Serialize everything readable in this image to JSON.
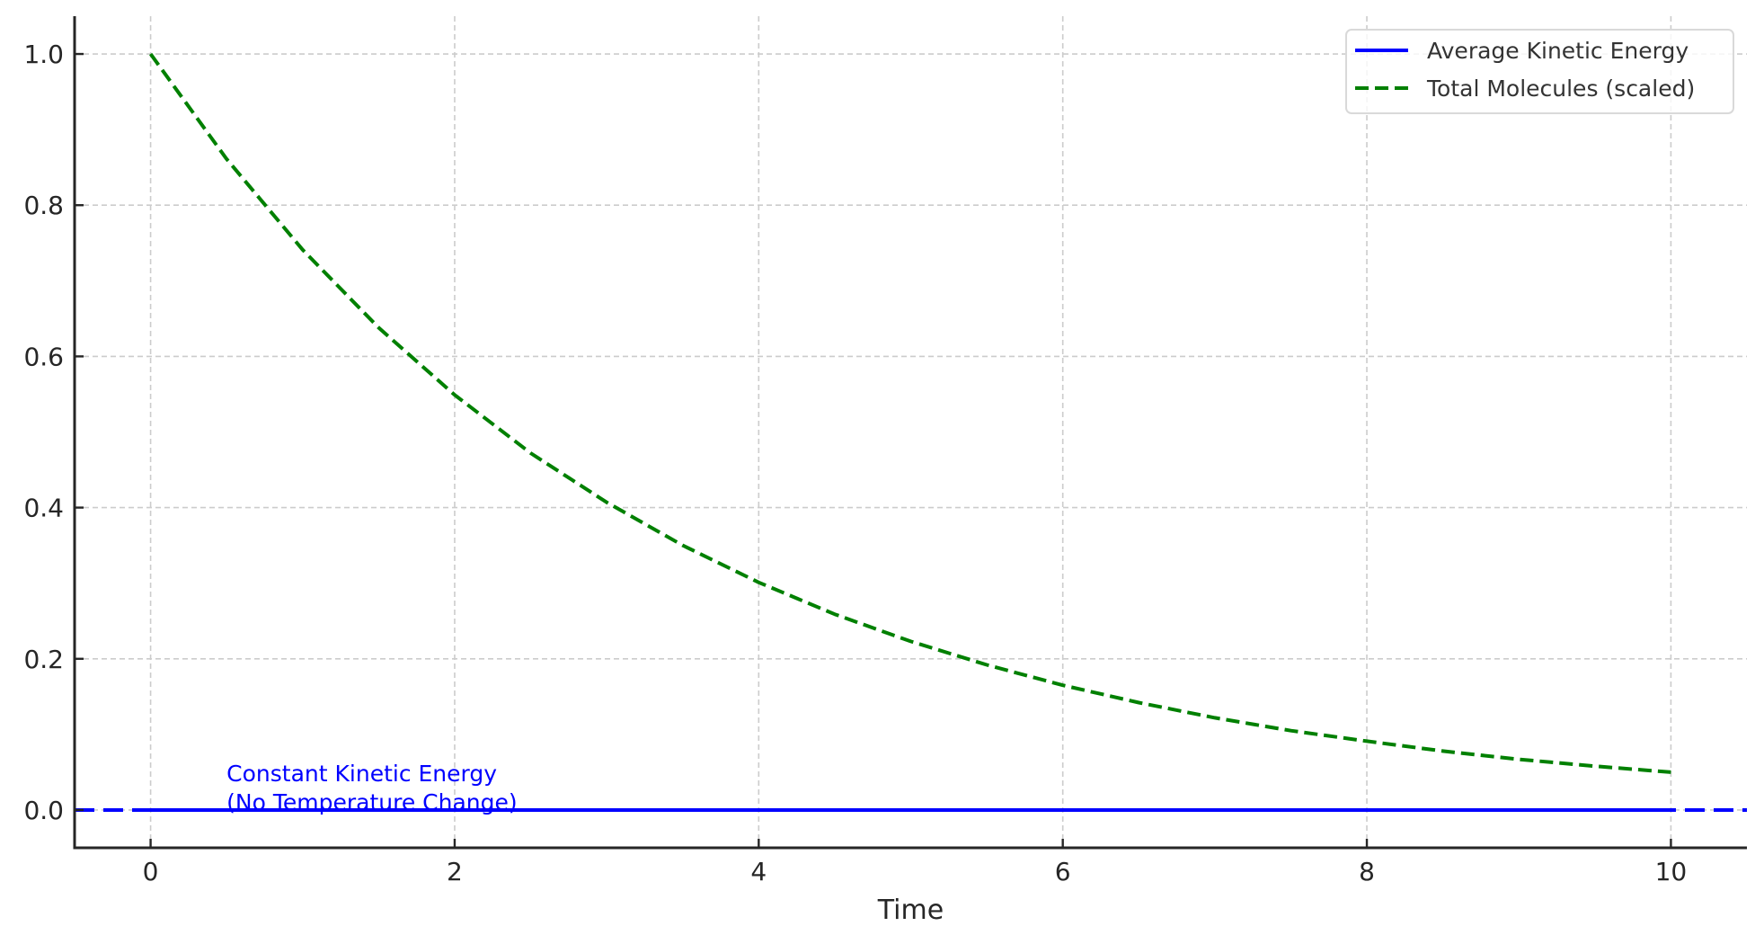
{
  "chart_data": {
    "type": "line",
    "title": "",
    "xlabel": "Time",
    "ylabel": "",
    "xlim": [
      -0.5,
      10.5
    ],
    "ylim": [
      -0.05,
      1.05
    ],
    "xticks": [
      0,
      2,
      4,
      6,
      8,
      10
    ],
    "xtick_labels": [
      "0",
      "2",
      "4",
      "6",
      "8",
      "10"
    ],
    "yticks": [
      0.0,
      0.2,
      0.4,
      0.6,
      0.8,
      1.0
    ],
    "ytick_labels": [
      "0.0",
      "0.2",
      "0.4",
      "0.6",
      "0.8",
      "1.0"
    ],
    "grid": true,
    "legend_position": "upper right",
    "x": [
      0,
      0.5,
      1,
      1.5,
      2,
      2.5,
      3,
      3.5,
      4,
      4.5,
      5,
      5.5,
      6,
      6.5,
      7,
      7.5,
      8,
      8.5,
      9,
      9.5,
      10
    ],
    "series": [
      {
        "name": "Average Kinetic Energy",
        "style": "solid",
        "color": "#0000ff",
        "values": [
          0,
          0,
          0,
          0,
          0,
          0,
          0,
          0,
          0,
          0,
          0,
          0,
          0,
          0,
          0,
          0,
          0,
          0,
          0,
          0,
          0
        ]
      },
      {
        "name": "Total Molecules (scaled)",
        "style": "dashed",
        "color": "#008000",
        "values": [
          1.0,
          0.861,
          0.741,
          0.638,
          0.549,
          0.472,
          0.407,
          0.35,
          0.301,
          0.259,
          0.223,
          0.192,
          0.165,
          0.142,
          0.122,
          0.105,
          0.091,
          0.078,
          0.067,
          0.058,
          0.05
        ]
      }
    ],
    "reference_lines": [
      {
        "type": "hline",
        "y": 0,
        "style": "dashed",
        "color": "#0000ff"
      }
    ],
    "annotations": [
      {
        "text_lines": [
          "Constant Kinetic Energy",
          "(No Temperature Change)"
        ],
        "x": 0.5,
        "y": 0.0,
        "color": "#0000ff"
      }
    ]
  },
  "colors": {
    "axis": "#262626",
    "grid": "#cccccc",
    "legend_border": "#d9d9d9"
  }
}
